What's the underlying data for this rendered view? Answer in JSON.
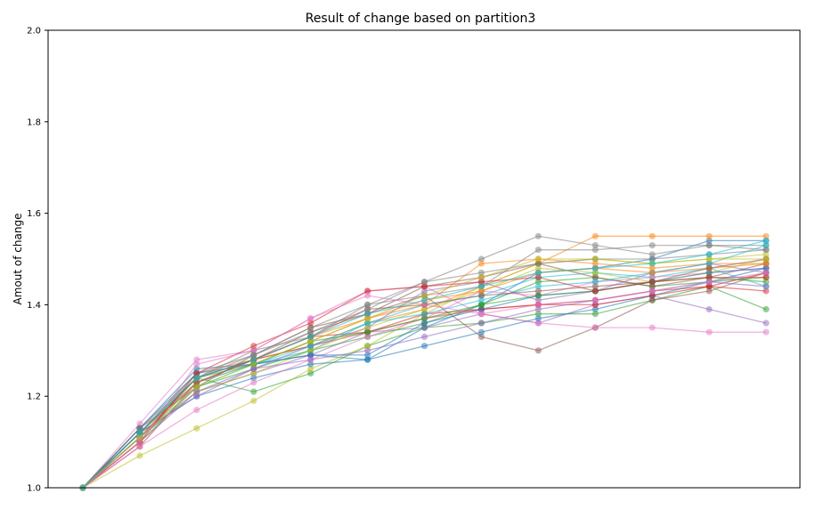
{
  "chart_data": {
    "type": "line",
    "title": "Result of change based on partition3",
    "xlabel": "",
    "ylabel": "Amout of change",
    "ylim": [
      1.0,
      2.0
    ],
    "yticks": [
      "1.0",
      "1.2",
      "1.4",
      "1.6",
      "1.8",
      "2.0"
    ],
    "x": [
      0,
      1,
      2,
      3,
      4,
      5,
      6,
      7,
      8,
      9,
      10,
      11,
      12
    ],
    "grid": false,
    "legend": "none",
    "marker": "circle",
    "series": [
      {
        "color": "#1f77b4",
        "values": [
          1.0,
          1.13,
          1.26,
          1.27,
          1.29,
          1.28,
          1.35,
          1.4,
          1.47,
          1.48,
          1.5,
          1.54,
          1.54
        ]
      },
      {
        "color": "#ff7f0e",
        "values": [
          1.0,
          1.12,
          1.25,
          1.28,
          1.31,
          1.36,
          1.39,
          1.44,
          1.49,
          1.55,
          1.55,
          1.55,
          1.55
        ]
      },
      {
        "color": "#2ca02c",
        "values": [
          1.0,
          1.11,
          1.24,
          1.21,
          1.25,
          1.31,
          1.35,
          1.36,
          1.38,
          1.38,
          1.41,
          1.44,
          1.39
        ]
      },
      {
        "color": "#d62728",
        "values": [
          1.0,
          1.09,
          1.23,
          1.28,
          1.33,
          1.34,
          1.37,
          1.39,
          1.4,
          1.41,
          1.43,
          1.44,
          1.43
        ]
      },
      {
        "color": "#9467bd",
        "values": [
          1.0,
          1.1,
          1.21,
          1.25,
          1.29,
          1.34,
          1.35,
          1.38,
          1.36,
          1.4,
          1.42,
          1.39,
          1.36
        ]
      },
      {
        "color": "#8c564b",
        "values": [
          1.0,
          1.12,
          1.24,
          1.28,
          1.34,
          1.38,
          1.42,
          1.33,
          1.3,
          1.35,
          1.41,
          1.43,
          1.47
        ]
      },
      {
        "color": "#e377c2",
        "values": [
          1.0,
          1.14,
          1.28,
          1.3,
          1.37,
          1.43,
          1.44,
          1.38,
          1.36,
          1.35,
          1.35,
          1.34,
          1.34
        ]
      },
      {
        "color": "#7f7f7f",
        "values": [
          1.0,
          1.12,
          1.24,
          1.3,
          1.33,
          1.4,
          1.45,
          1.5,
          1.55,
          1.53,
          1.51,
          1.53,
          1.52
        ]
      },
      {
        "color": "#bcbd22",
        "values": [
          1.0,
          1.07,
          1.13,
          1.19,
          1.26,
          1.31,
          1.38,
          1.44,
          1.49,
          1.5,
          1.49,
          1.5,
          1.51
        ]
      },
      {
        "color": "#17becf",
        "values": [
          1.0,
          1.11,
          1.22,
          1.27,
          1.3,
          1.36,
          1.4,
          1.42,
          1.46,
          1.47,
          1.46,
          1.48,
          1.44
        ]
      },
      {
        "color": "#1f77b4",
        "values": [
          1.0,
          1.12,
          1.2,
          1.24,
          1.27,
          1.28,
          1.31,
          1.34,
          1.37,
          1.39,
          1.42,
          1.45,
          1.48
        ]
      },
      {
        "color": "#ff7f0e",
        "values": [
          1.0,
          1.11,
          1.23,
          1.27,
          1.32,
          1.37,
          1.4,
          1.49,
          1.5,
          1.49,
          1.48,
          1.49,
          1.49
        ]
      },
      {
        "color": "#2ca02c",
        "values": [
          1.0,
          1.1,
          1.22,
          1.26,
          1.3,
          1.33,
          1.36,
          1.4,
          1.45,
          1.46,
          1.44,
          1.45,
          1.46
        ]
      },
      {
        "color": "#d62728",
        "values": [
          1.0,
          1.11,
          1.24,
          1.28,
          1.31,
          1.34,
          1.38,
          1.39,
          1.4,
          1.4,
          1.42,
          1.44,
          1.47
        ]
      },
      {
        "color": "#9467bd",
        "values": [
          1.0,
          1.12,
          1.2,
          1.26,
          1.31,
          1.35,
          1.43,
          1.45,
          1.41,
          1.43,
          1.47,
          1.49,
          1.47
        ]
      },
      {
        "color": "#8c564b",
        "values": [
          1.0,
          1.13,
          1.22,
          1.29,
          1.35,
          1.38,
          1.44,
          1.46,
          1.49,
          1.46,
          1.44,
          1.46,
          1.49
        ]
      },
      {
        "color": "#e377c2",
        "values": [
          1.0,
          1.09,
          1.17,
          1.23,
          1.28,
          1.33,
          1.37,
          1.43,
          1.42,
          1.45,
          1.46,
          1.47,
          1.48
        ]
      },
      {
        "color": "#7f7f7f",
        "values": [
          1.0,
          1.12,
          1.25,
          1.29,
          1.35,
          1.4,
          1.42,
          1.44,
          1.52,
          1.52,
          1.53,
          1.53,
          1.53
        ]
      },
      {
        "color": "#bcbd22",
        "values": [
          1.0,
          1.11,
          1.21,
          1.25,
          1.3,
          1.35,
          1.39,
          1.43,
          1.48,
          1.47,
          1.45,
          1.47,
          1.5
        ]
      },
      {
        "color": "#17becf",
        "values": [
          1.0,
          1.11,
          1.23,
          1.27,
          1.31,
          1.36,
          1.38,
          1.41,
          1.44,
          1.45,
          1.47,
          1.49,
          1.53
        ]
      },
      {
        "color": "#1f77b4",
        "values": [
          1.0,
          1.13,
          1.25,
          1.27,
          1.29,
          1.29,
          1.36,
          1.39,
          1.42,
          1.43,
          1.45,
          1.47,
          1.48
        ]
      },
      {
        "color": "#ff7f0e",
        "values": [
          1.0,
          1.11,
          1.23,
          1.28,
          1.33,
          1.37,
          1.41,
          1.43,
          1.47,
          1.48,
          1.47,
          1.48,
          1.49
        ]
      },
      {
        "color": "#2ca02c",
        "values": [
          1.0,
          1.12,
          1.24,
          1.27,
          1.32,
          1.34,
          1.37,
          1.4,
          1.42,
          1.43,
          1.45,
          1.46,
          1.45
        ]
      },
      {
        "color": "#d62728",
        "values": [
          1.0,
          1.1,
          1.25,
          1.31,
          1.36,
          1.43,
          1.44,
          1.45,
          1.46,
          1.43,
          1.45,
          1.46,
          1.46
        ]
      },
      {
        "color": "#9467bd",
        "values": [
          1.0,
          1.11,
          1.21,
          1.26,
          1.28,
          1.3,
          1.33,
          1.36,
          1.39,
          1.41,
          1.43,
          1.45,
          1.44
        ]
      },
      {
        "color": "#8c564b",
        "values": [
          1.0,
          1.12,
          1.23,
          1.28,
          1.33,
          1.39,
          1.4,
          1.42,
          1.43,
          1.44,
          1.45,
          1.48,
          1.5
        ]
      },
      {
        "color": "#e377c2",
        "values": [
          1.0,
          1.1,
          1.27,
          1.3,
          1.37,
          1.42,
          1.4,
          1.38,
          1.4,
          1.41,
          1.43,
          1.45,
          1.47
        ]
      },
      {
        "color": "#7f7f7f",
        "values": [
          1.0,
          1.13,
          1.24,
          1.29,
          1.34,
          1.39,
          1.45,
          1.47,
          1.49,
          1.5,
          1.5,
          1.51,
          1.52
        ]
      },
      {
        "color": "#bcbd22",
        "values": [
          1.0,
          1.11,
          1.22,
          1.27,
          1.32,
          1.37,
          1.42,
          1.46,
          1.5,
          1.5,
          1.49,
          1.5,
          1.5
        ]
      },
      {
        "color": "#17becf",
        "values": [
          1.0,
          1.12,
          1.24,
          1.28,
          1.33,
          1.38,
          1.41,
          1.44,
          1.47,
          1.48,
          1.49,
          1.51,
          1.54
        ]
      }
    ]
  }
}
